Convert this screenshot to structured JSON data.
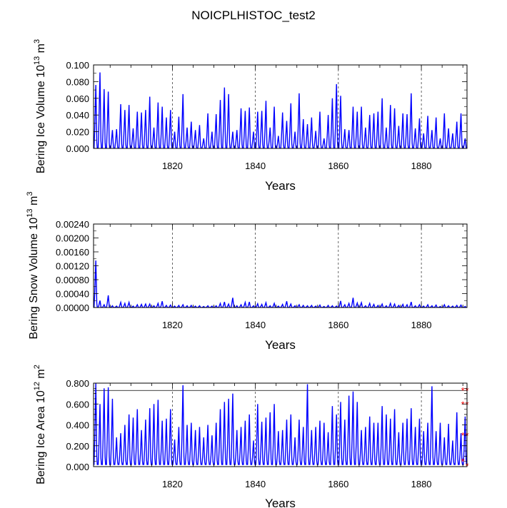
{
  "figure_title": "NOICPLHISTOC_test2",
  "chart_data": [
    {
      "type": "line",
      "title": "NOICPLHISTOC_test2",
      "ylabel_main": "Bering Ice Volume 10",
      "ylabel_exp": "13",
      "ylabel_unit": " m",
      "ylabel_unit_exp": "3",
      "xlabel": "Years",
      "xlim": [
        1801,
        1891
      ],
      "ylim": [
        0,
        0.1
      ],
      "xticks": [
        1820,
        1840,
        1860,
        1880
      ],
      "xtick_labels": [
        "1820",
        "1840",
        "1860",
        "1880"
      ],
      "yticks": [
        0,
        0.02,
        0.04,
        0.06,
        0.08,
        0.1
      ],
      "ytick_labels": [
        "0.000",
        "0.020",
        "0.040",
        "0.060",
        "0.080",
        "0.100"
      ],
      "grid_x": [
        1820,
        1840,
        1860,
        1880
      ],
      "series": [
        {
          "name": "Bering Ice Volume",
          "color": "#0000ff",
          "x_start": 1801,
          "x_step": 1,
          "annual_max": [
            0.076,
            0.091,
            0.071,
            0.068,
            0.022,
            0.023,
            0.053,
            0.046,
            0.052,
            0.024,
            0.044,
            0.043,
            0.046,
            0.062,
            0.025,
            0.055,
            0.05,
            0.037,
            0.046,
            0.02,
            0.038,
            0.065,
            0.025,
            0.032,
            0.022,
            0.028,
            0.012,
            0.042,
            0.02,
            0.041,
            0.058,
            0.073,
            0.065,
            0.02,
            0.022,
            0.048,
            0.045,
            0.049,
            0.02,
            0.044,
            0.045,
            0.057,
            0.025,
            0.05,
            0.015,
            0.043,
            0.033,
            0.054,
            0.02,
            0.066,
            0.035,
            0.029,
            0.037,
            0.021,
            0.044,
            0.012,
            0.04,
            0.06,
            0.077,
            0.063,
            0.023,
            0.022,
            0.05,
            0.044,
            0.05,
            0.025,
            0.04,
            0.042,
            0.044,
            0.06,
            0.025,
            0.052,
            0.048,
            0.027,
            0.042,
            0.041,
            0.066,
            0.024,
            0.036,
            0.018,
            0.039,
            0.022,
            0.037,
            0.012,
            0.042,
            0.024,
            0.018,
            0.032,
            0.042,
            0.012
          ],
          "annual_min": 0.0
        }
      ]
    },
    {
      "type": "line",
      "ylabel_main": "Bering Snow Volume 10",
      "ylabel_exp": "13",
      "ylabel_unit": " m",
      "ylabel_unit_exp": "3",
      "xlabel": "Years",
      "xlim": [
        1801,
        1891
      ],
      "ylim": [
        0,
        0.0024
      ],
      "xticks": [
        1820,
        1840,
        1860,
        1880
      ],
      "xtick_labels": [
        "1820",
        "1840",
        "1860",
        "1880"
      ],
      "yticks": [
        0,
        0.0004,
        0.0008,
        0.0012,
        0.0016,
        0.002,
        0.0024
      ],
      "ytick_labels": [
        "0.00000",
        "0.00040",
        "0.00080",
        "0.00120",
        "0.00160",
        "0.00200",
        "0.00240"
      ],
      "grid_x": [
        1820,
        1840,
        1860,
        1880
      ],
      "series": [
        {
          "name": "Bering Snow Volume",
          "color": "#0000ff",
          "x_start": 1801,
          "x_step": 1,
          "annual_max": [
            0.00135,
            0.0002,
            8e-05,
            0.00035,
            5e-05,
            4e-05,
            0.00015,
            0.00012,
            0.00015,
            4e-05,
            8e-05,
            9e-05,
            0.0001,
            0.0001,
            5e-05,
            0.00012,
            0.00018,
            6e-05,
            7e-05,
            4e-05,
            6e-05,
            8e-05,
            5e-05,
            6e-05,
            4e-05,
            5e-05,
            3e-05,
            5e-05,
            4e-05,
            5e-05,
            0.00012,
            0.00016,
            0.0001,
            0.00028,
            5e-05,
            8e-05,
            0.00015,
            0.00016,
            5e-05,
            0.00011,
            9e-05,
            0.00014,
            5e-05,
            0.00012,
            4e-05,
            9e-05,
            0.00018,
            0.0001,
            5e-05,
            8e-05,
            6e-05,
            5e-05,
            6e-05,
            4e-05,
            7e-05,
            3e-05,
            6e-05,
            5e-05,
            4e-05,
            0.00019,
            8e-05,
            0.00012,
            0.00028,
            0.00013,
            0.00014,
            5e-05,
            0.00012,
            9e-05,
            6e-05,
            0.0001,
            5e-05,
            0.00012,
            0.0001,
            6e-05,
            9e-05,
            8e-05,
            0.00016,
            5e-05,
            8e-05,
            4e-05,
            8e-05,
            5e-05,
            7e-05,
            3e-05,
            8e-05,
            5e-05,
            4e-05,
            6e-05,
            7e-05,
            3e-05
          ],
          "annual_min": 0.0
        }
      ]
    },
    {
      "type": "line",
      "ylabel_main": "Bering Ice Area 10",
      "ylabel_exp": "12",
      "ylabel_unit": " m",
      "ylabel_unit_exp": "2",
      "xlabel": "Years",
      "xlim": [
        1801,
        1891
      ],
      "ylim": [
        0,
        0.8
      ],
      "xticks": [
        1820,
        1840,
        1860,
        1880
      ],
      "xtick_labels": [
        "1820",
        "1840",
        "1860",
        "1880"
      ],
      "yticks": [
        0,
        0.1,
        0.2,
        0.3,
        0.4,
        0.5,
        0.6,
        0.7,
        0.8
      ],
      "ytick_labels": [
        "0.000",
        "",
        "0.200",
        "",
        "0.400",
        "",
        "0.600",
        "",
        "0.800"
      ],
      "grid_x": [
        1820,
        1840,
        1860,
        1880
      ],
      "reference_line": 0.73,
      "series": [
        {
          "name": "Bering Ice Area",
          "color": "#0000ff",
          "x_start": 1801,
          "x_step": 1,
          "annual_max": [
            0.8,
            0.6,
            0.75,
            0.76,
            0.65,
            0.28,
            0.32,
            0.4,
            0.5,
            0.47,
            0.55,
            0.35,
            0.45,
            0.56,
            0.6,
            0.64,
            0.44,
            0.46,
            0.55,
            0.26,
            0.38,
            0.78,
            0.4,
            0.42,
            0.35,
            0.38,
            0.28,
            0.4,
            0.3,
            0.42,
            0.55,
            0.62,
            0.65,
            0.7,
            0.35,
            0.38,
            0.44,
            0.5,
            0.25,
            0.6,
            0.43,
            0.47,
            0.52,
            0.6,
            0.34,
            0.35,
            0.45,
            0.5,
            0.28,
            0.45,
            0.38,
            0.79,
            0.35,
            0.38,
            0.44,
            0.42,
            0.33,
            0.58,
            0.5,
            0.62,
            0.45,
            0.68,
            0.72,
            0.62,
            0.35,
            0.38,
            0.48,
            0.42,
            0.42,
            0.58,
            0.5,
            0.46,
            0.55,
            0.33,
            0.42,
            0.46,
            0.56,
            0.38,
            0.46,
            0.34,
            0.42,
            0.77,
            0.34,
            0.42,
            0.28,
            0.41,
            0.25,
            0.52,
            0.32,
            0.48
          ],
          "annual_min": 0.02
        },
        {
          "name": "markers",
          "color": "#ff0000",
          "type": "scatter",
          "x": [
            1890,
            1891,
            1890,
            1891,
            1890,
            1891,
            1890,
            1891
          ],
          "y": [
            0.73,
            0.73,
            0.6,
            0.6,
            0.3,
            0.3,
            0.05,
            0.01
          ]
        }
      ]
    }
  ]
}
